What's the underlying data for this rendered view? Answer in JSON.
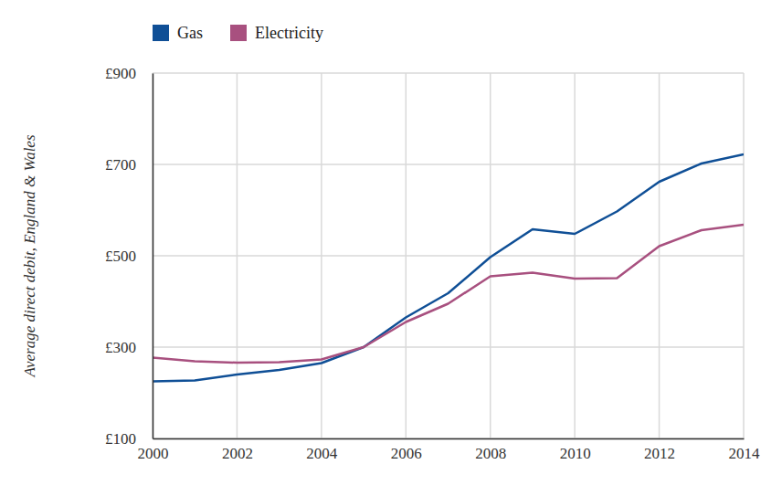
{
  "chart_data": {
    "type": "line",
    "y_label": "Average direct debit, England & Wales",
    "x": [
      2000,
      2001,
      2002,
      2003,
      2004,
      2005,
      2006,
      2007,
      2008,
      2009,
      2010,
      2011,
      2012,
      2013,
      2014
    ],
    "series": [
      {
        "name": "Gas",
        "color": "#0f4f96",
        "values": [
          225,
          227,
          240,
          250,
          265,
          300,
          365,
          418,
          497,
          558,
          548,
          597,
          662,
          702,
          722
        ]
      },
      {
        "name": "Electricity",
        "color": "#a8507f",
        "values": [
          277,
          269,
          266,
          267,
          273,
          300,
          355,
          395,
          455,
          463,
          450,
          451,
          521,
          556,
          568
        ]
      }
    ],
    "xlim": [
      2000,
      2014
    ],
    "xticks": [
      2000,
      2002,
      2004,
      2006,
      2008,
      2010,
      2012,
      2014
    ],
    "ylim": [
      100,
      900
    ],
    "yticks": [
      {
        "value": 100,
        "label": "£100"
      },
      {
        "value": 300,
        "label": "£300"
      },
      {
        "value": 500,
        "label": "£500"
      },
      {
        "value": 700,
        "label": "£700"
      },
      {
        "value": 900,
        "label": "£900"
      }
    ],
    "grid": true,
    "legend": "top-left"
  }
}
